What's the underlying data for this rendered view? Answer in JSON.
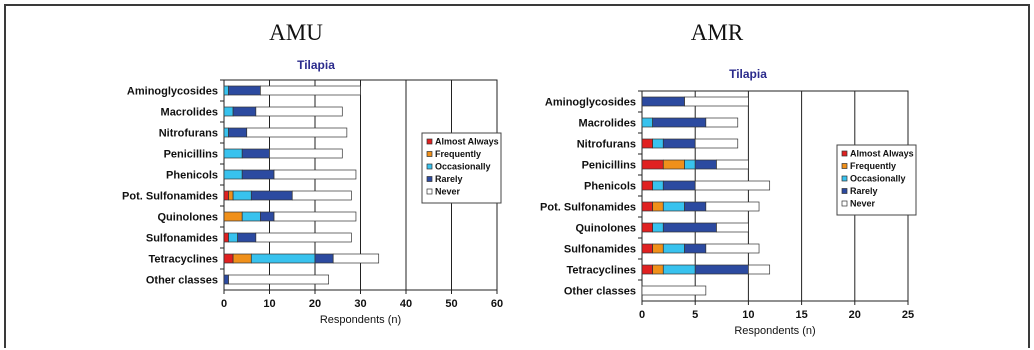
{
  "colors": {
    "Almost Always": "#e02020",
    "Frequently": "#f0901a",
    "Occasionally": "#38c2ee",
    "Rarely": "#2c4aa0",
    "Never": "#ffffff"
  },
  "chart_data": [
    {
      "type": "bar",
      "orientation": "horizontal",
      "stacked": true,
      "heading": "AMU",
      "title": "Tilapia",
      "xlabel": "Respondents (n)",
      "ylabel": "",
      "xlim": [
        0,
        60
      ],
      "xticks": [
        0,
        10,
        20,
        30,
        40,
        50,
        60
      ],
      "grid": "vertical",
      "legend_position": "right",
      "categories": [
        "Aminoglycosides",
        "Macrolides",
        "Nitrofurans",
        "Penicillins",
        "Phenicols",
        "Pot. Sulfonamides",
        "Quinolones",
        "Sulfonamides",
        "Tetracyclines",
        "Other classes"
      ],
      "series": [
        {
          "name": "Almost Always",
          "values": [
            0,
            0,
            0,
            0,
            0,
            1,
            0,
            1,
            2,
            0
          ]
        },
        {
          "name": "Frequently",
          "values": [
            0,
            0,
            0,
            0,
            0,
            1,
            4,
            0,
            4,
            0
          ]
        },
        {
          "name": "Occasionally",
          "values": [
            1,
            2,
            1,
            4,
            4,
            4,
            4,
            2,
            14,
            0
          ]
        },
        {
          "name": "Rarely",
          "values": [
            7,
            5,
            4,
            6,
            7,
            9,
            3,
            4,
            4,
            1
          ]
        },
        {
          "name": "Never",
          "values": [
            22,
            19,
            22,
            16,
            18,
            13,
            18,
            21,
            10,
            22
          ]
        }
      ]
    },
    {
      "type": "bar",
      "orientation": "horizontal",
      "stacked": true,
      "heading": "AMR",
      "title": "Tilapia",
      "xlabel": "Respondents (n)",
      "ylabel": "",
      "xlim": [
        0,
        25
      ],
      "xticks": [
        0,
        5,
        10,
        15,
        20,
        25
      ],
      "grid": "vertical",
      "legend_position": "right",
      "categories": [
        "Aminoglycosides",
        "Macrolides",
        "Nitrofurans",
        "Penicillins",
        "Phenicols",
        "Pot. Sulfonamides",
        "Quinolones",
        "Sulfonamides",
        "Tetracyclines",
        "Other classes"
      ],
      "series": [
        {
          "name": "Almost Always",
          "values": [
            0,
            0,
            1,
            2,
            1,
            1,
            1,
            1,
            1,
            0
          ]
        },
        {
          "name": "Frequently",
          "values": [
            0,
            0,
            0,
            2,
            0,
            1,
            0,
            1,
            1,
            0
          ]
        },
        {
          "name": "Occasionally",
          "values": [
            0,
            1,
            1,
            1,
            1,
            2,
            1,
            2,
            3,
            0
          ]
        },
        {
          "name": "Rarely",
          "values": [
            4,
            5,
            3,
            2,
            3,
            2,
            5,
            2,
            5,
            0
          ]
        },
        {
          "name": "Never",
          "values": [
            6,
            3,
            4,
            3,
            7,
            5,
            3,
            5,
            2,
            6
          ]
        }
      ]
    }
  ]
}
